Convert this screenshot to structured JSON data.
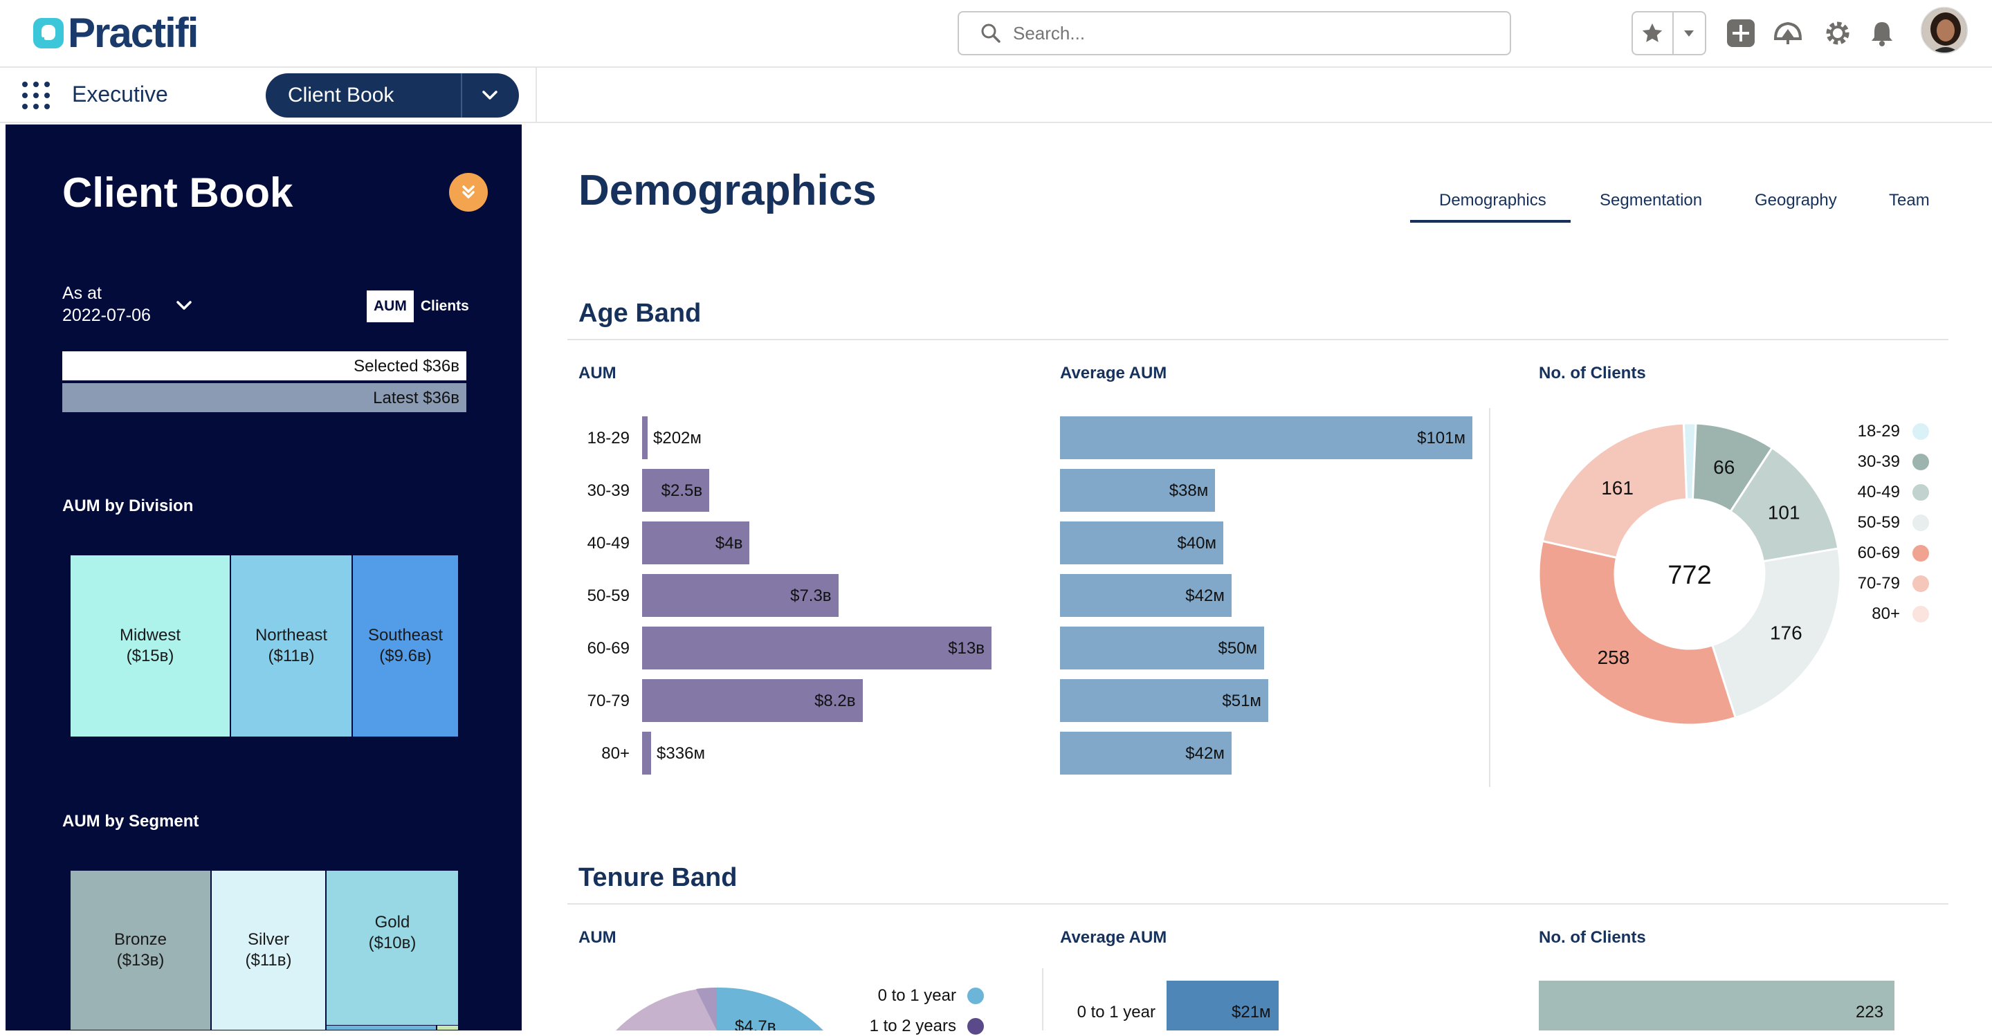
{
  "header": {
    "logo_text": "Practifi",
    "search_placeholder": "Search...",
    "icons": [
      "star-icon",
      "chevron-down-icon",
      "plus-icon",
      "trailhead-icon",
      "gear-icon",
      "bell-icon"
    ]
  },
  "nav": {
    "app_name": "Executive",
    "active_tab": "Client Book"
  },
  "left_panel": {
    "title": "Client Book",
    "as_at_label": "As at",
    "as_at_date": "2022-07-06",
    "toggle_aum": "AUM",
    "toggle_clients": "Clients",
    "selected_label": "Selected $36в",
    "latest_label": "Latest $36в",
    "division_title": "AUM by Division",
    "divisions": [
      {
        "name": "Midwest",
        "value": "($15в)",
        "color": "#aef2ec"
      },
      {
        "name": "Northeast",
        "value": "($11в)",
        "color": "#87ceeb"
      },
      {
        "name": "Southeast",
        "value": "($9.6в)",
        "color": "#529ce8"
      }
    ],
    "segment_title": "AUM by Segment",
    "segments": [
      {
        "name": "Bronze",
        "value": "($13в)",
        "color": "#9bb3b5"
      },
      {
        "name": "Silver",
        "value": "($11в)",
        "color": "#daf3f8"
      },
      {
        "name": "Gold",
        "value": "($10в)",
        "color": "#97d8e4"
      }
    ]
  },
  "main": {
    "page_title": "Demographics",
    "tabs": [
      "Demographics",
      "Segmentation",
      "Geography",
      "Team"
    ],
    "age_section": {
      "title": "Age Band",
      "aum_title": "AUM",
      "avg_title": "Average AUM",
      "clients_title": "No. of Clients",
      "clients_total": "772"
    },
    "tenure_section": {
      "title": "Tenure Band",
      "aum_title": "AUM",
      "avg_title": "Average AUM",
      "clients_title": "No. of Clients",
      "pie_visible_label": "$4.7в",
      "legend": [
        {
          "label": "0 to 1 year",
          "color": "#6bb5d8"
        },
        {
          "label": "1 to 2 years",
          "color": "#5a4a8a"
        }
      ],
      "avg_first": {
        "category": "0 to 1 year",
        "label": "$21м",
        "value": 21
      },
      "clients_first": {
        "label": "223",
        "value": 223
      }
    }
  },
  "chart_data": [
    {
      "type": "bar",
      "title": "AUM",
      "orientation": "horizontal",
      "categories": [
        "18-29",
        "30-39",
        "40-49",
        "50-59",
        "60-69",
        "70-79",
        "80+"
      ],
      "values": [
        0.202,
        2.5,
        4,
        7.3,
        13,
        8.2,
        0.336
      ],
      "labels": [
        "$202м",
        "$2.5в",
        "$4в",
        "$7.3в",
        "$13в",
        "$8.2в",
        "$336м"
      ],
      "unit": "$B",
      "xlim": [
        0,
        13
      ],
      "color": "#8478a6"
    },
    {
      "type": "bar",
      "title": "Average AUM",
      "orientation": "horizontal",
      "categories": [
        "18-29",
        "30-39",
        "40-49",
        "50-59",
        "60-69",
        "70-79",
        "80+"
      ],
      "values": [
        101,
        38,
        40,
        42,
        50,
        51,
        42
      ],
      "labels": [
        "$101м",
        "$38м",
        "$40м",
        "$42м",
        "$50м",
        "$51м",
        "$42м"
      ],
      "unit": "$M",
      "xlim": [
        0,
        101
      ],
      "color": "#82a8c9"
    },
    {
      "type": "pie",
      "title": "No. of Clients",
      "donut": true,
      "center_label": "772",
      "categories": [
        "18-29",
        "30-39",
        "40-49",
        "50-59",
        "60-69",
        "70-79",
        "80+"
      ],
      "values": [
        10,
        66,
        101,
        176,
        258,
        161,
        0
      ],
      "labels": [
        "",
        "66",
        "101",
        "176",
        "258",
        "161",
        ""
      ],
      "colors": [
        "#daf2f7",
        "#9db3ae",
        "#c2d2cf",
        "#e8eeee",
        "#f0a391",
        "#f5c6ba",
        "#fbe3de"
      ],
      "legend_position": "right"
    }
  ]
}
